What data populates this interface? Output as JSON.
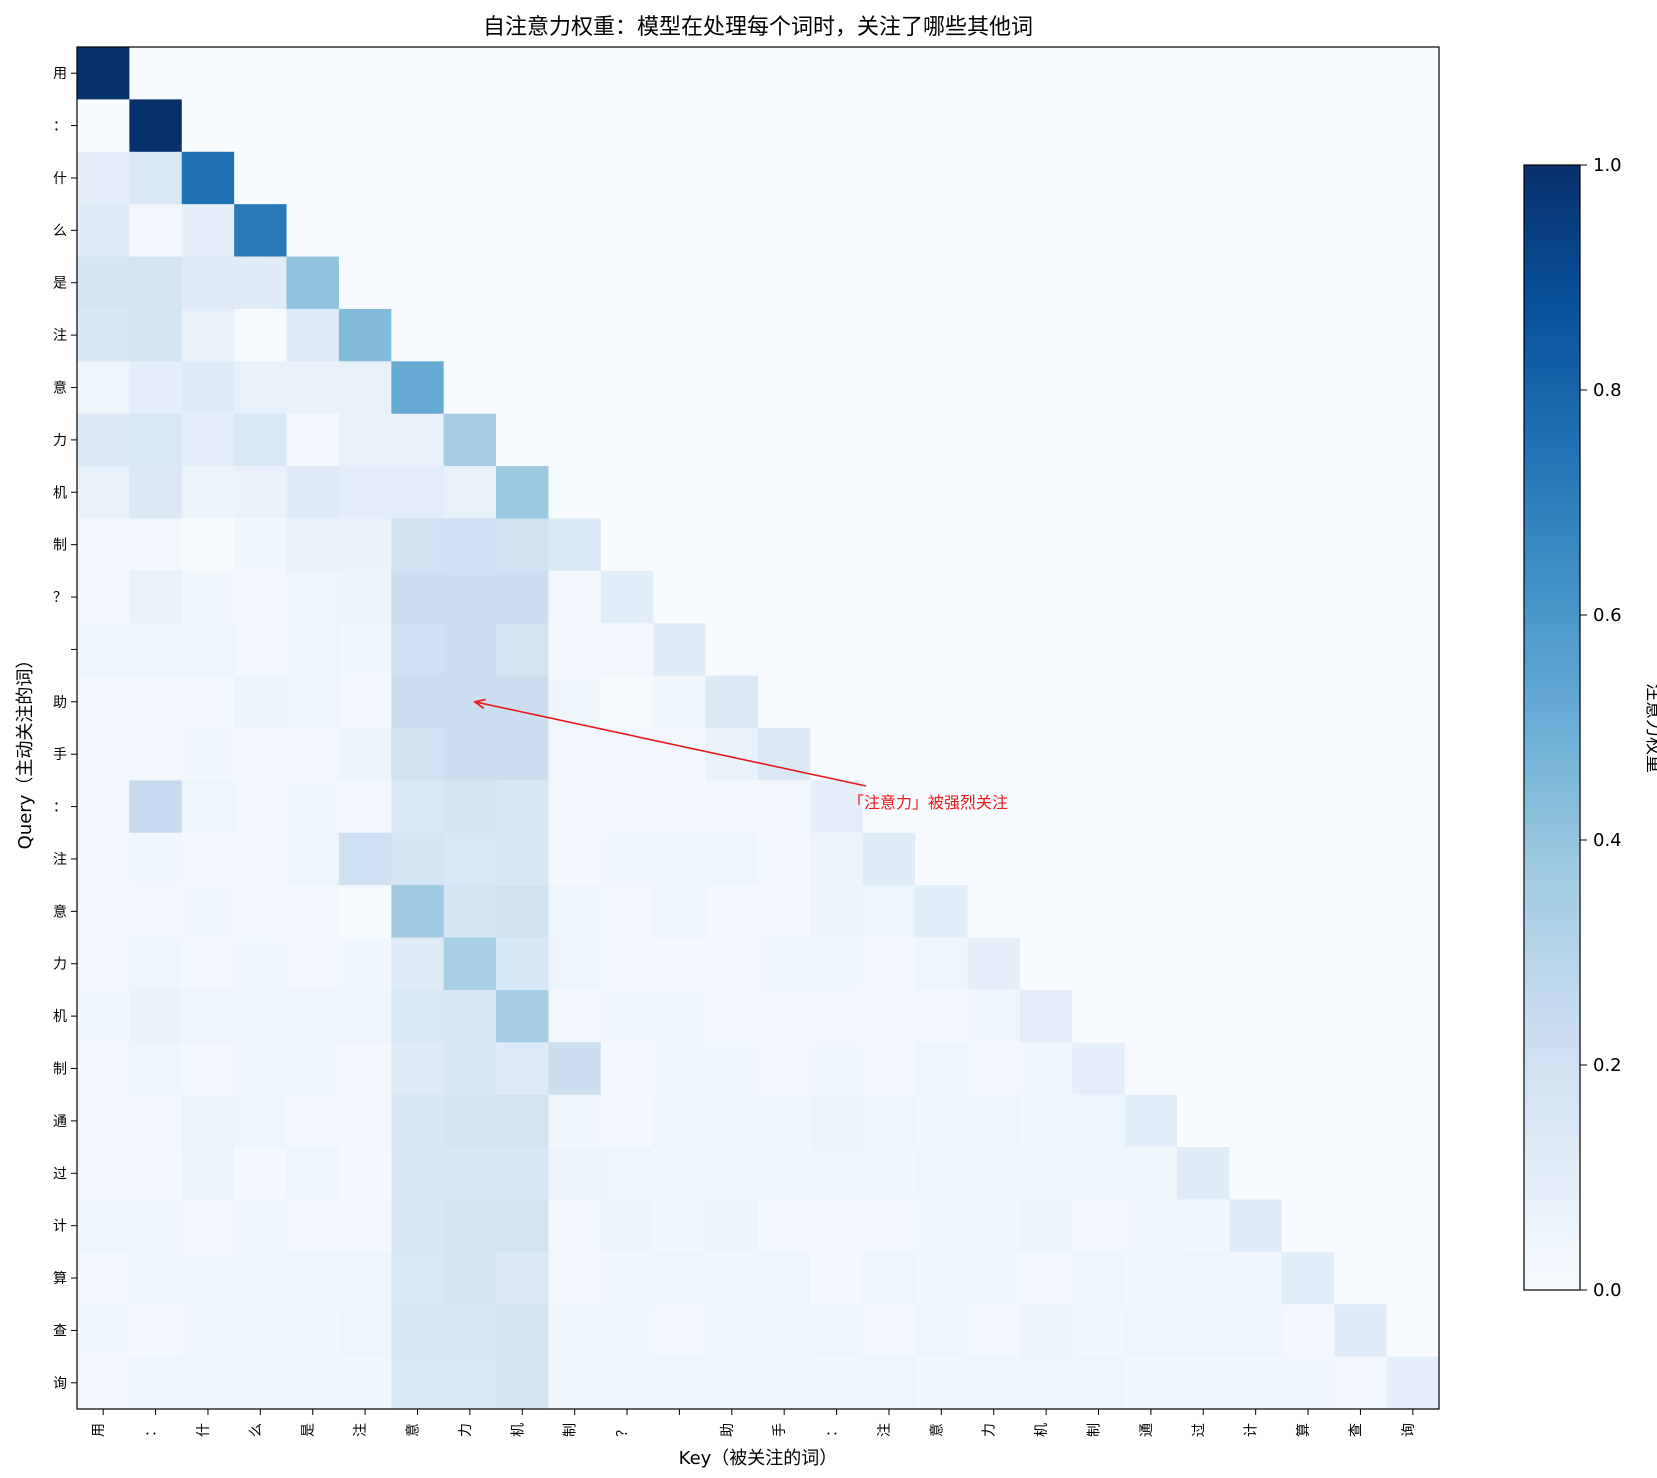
{
  "chart_data": {
    "type": "heatmap",
    "title": "自注意力权重：模型在处理每个词时，关注了哪些其他词",
    "xlabel": "Key（被关注的词）",
    "ylabel": "Query（主动关注的词）",
    "tokens": [
      "用",
      "：",
      "什",
      "么",
      "是",
      "注",
      "意",
      "力",
      "机",
      "制",
      "？",
      " ",
      "助",
      "手",
      "：",
      "注",
      "意",
      "力",
      "机",
      "制",
      "通",
      "过",
      "计",
      "算",
      "查",
      "询"
    ],
    "color_scale": {
      "min": 0.0,
      "max": 1.0,
      "ticks": [
        "0.0",
        "0.2",
        "0.4",
        "0.6",
        "0.8",
        "1.0"
      ],
      "label": "注意力权重",
      "colormap": "Blues"
    },
    "masked": "upper-triangle",
    "annotation": {
      "text": "「注意力」被强烈关注",
      "target_row": 12,
      "target_col": 7,
      "color": "#e8191a"
    },
    "values": [
      [
        1.0
      ],
      [
        0.0,
        1.0
      ],
      [
        0.1,
        0.15,
        0.75
      ],
      [
        0.12,
        0.03,
        0.1,
        0.72
      ],
      [
        0.17,
        0.18,
        0.12,
        0.12,
        0.41
      ],
      [
        0.16,
        0.18,
        0.08,
        0.01,
        0.13,
        0.44
      ],
      [
        0.05,
        0.09,
        0.12,
        0.08,
        0.07,
        0.08,
        0.52
      ],
      [
        0.14,
        0.15,
        0.1,
        0.15,
        0.02,
        0.08,
        0.07,
        0.35
      ],
      [
        0.08,
        0.14,
        0.06,
        0.07,
        0.12,
        0.1,
        0.1,
        0.08,
        0.38
      ],
      [
        0.03,
        0.03,
        0.01,
        0.04,
        0.08,
        0.07,
        0.2,
        0.21,
        0.2,
        0.15
      ],
      [
        0.03,
        0.08,
        0.04,
        0.03,
        0.05,
        0.06,
        0.23,
        0.22,
        0.23,
        0.02,
        0.11
      ],
      [
        0.05,
        0.05,
        0.05,
        0.03,
        0.05,
        0.04,
        0.21,
        0.22,
        0.18,
        0.03,
        0.03,
        0.12
      ],
      [
        0.03,
        0.03,
        0.03,
        0.06,
        0.05,
        0.03,
        0.23,
        0.23,
        0.23,
        0.04,
        0.01,
        0.04,
        0.14
      ],
      [
        0.03,
        0.03,
        0.04,
        0.03,
        0.03,
        0.06,
        0.2,
        0.23,
        0.23,
        0.03,
        0.03,
        0.02,
        0.07,
        0.14
      ],
      [
        0.03,
        0.25,
        0.05,
        0.03,
        0.04,
        0.03,
        0.15,
        0.18,
        0.16,
        0.03,
        0.03,
        0.03,
        0.03,
        0.03,
        0.1
      ],
      [
        0.03,
        0.04,
        0.03,
        0.03,
        0.05,
        0.21,
        0.17,
        0.15,
        0.16,
        0.02,
        0.04,
        0.04,
        0.05,
        0.03,
        0.06,
        0.12
      ],
      [
        0.03,
        0.03,
        0.04,
        0.02,
        0.03,
        0.01,
        0.37,
        0.17,
        0.2,
        0.05,
        0.03,
        0.05,
        0.03,
        0.03,
        0.06,
        0.05,
        0.11
      ],
      [
        0.03,
        0.05,
        0.03,
        0.04,
        0.03,
        0.04,
        0.13,
        0.34,
        0.16,
        0.05,
        0.02,
        0.02,
        0.03,
        0.04,
        0.04,
        0.03,
        0.05,
        0.09
      ],
      [
        0.04,
        0.07,
        0.05,
        0.04,
        0.05,
        0.05,
        0.15,
        0.16,
        0.35,
        0.03,
        0.04,
        0.04,
        0.02,
        0.03,
        0.03,
        0.03,
        0.03,
        0.04,
        0.1
      ],
      [
        0.03,
        0.05,
        0.03,
        0.04,
        0.04,
        0.03,
        0.12,
        0.16,
        0.13,
        0.22,
        0.03,
        0.04,
        0.04,
        0.03,
        0.04,
        0.03,
        0.05,
        0.03,
        0.04,
        0.09
      ],
      [
        0.03,
        0.03,
        0.06,
        0.05,
        0.03,
        0.03,
        0.16,
        0.17,
        0.19,
        0.04,
        0.02,
        0.05,
        0.04,
        0.04,
        0.06,
        0.05,
        0.04,
        0.05,
        0.04,
        0.05,
        0.11
      ],
      [
        0.03,
        0.02,
        0.06,
        0.02,
        0.05,
        0.02,
        0.16,
        0.16,
        0.16,
        0.06,
        0.05,
        0.04,
        0.04,
        0.04,
        0.05,
        0.04,
        0.05,
        0.04,
        0.04,
        0.04,
        0.04,
        0.12
      ],
      [
        0.05,
        0.04,
        0.03,
        0.04,
        0.03,
        0.03,
        0.16,
        0.18,
        0.19,
        0.03,
        0.06,
        0.04,
        0.06,
        0.03,
        0.03,
        0.03,
        0.04,
        0.04,
        0.06,
        0.03,
        0.04,
        0.04,
        0.13
      ],
      [
        0.03,
        0.04,
        0.04,
        0.04,
        0.05,
        0.05,
        0.15,
        0.17,
        0.14,
        0.02,
        0.04,
        0.05,
        0.04,
        0.05,
        0.02,
        0.05,
        0.04,
        0.04,
        0.03,
        0.05,
        0.04,
        0.05,
        0.04,
        0.11
      ],
      [
        0.04,
        0.02,
        0.04,
        0.04,
        0.04,
        0.05,
        0.16,
        0.16,
        0.18,
        0.04,
        0.04,
        0.03,
        0.04,
        0.05,
        0.05,
        0.03,
        0.05,
        0.03,
        0.06,
        0.04,
        0.05,
        0.05,
        0.05,
        0.03,
        0.12
      ],
      [
        0.03,
        0.05,
        0.04,
        0.04,
        0.04,
        0.04,
        0.15,
        0.15,
        0.17,
        0.04,
        0.04,
        0.05,
        0.04,
        0.05,
        0.04,
        0.05,
        0.04,
        0.05,
        0.05,
        0.05,
        0.04,
        0.04,
        0.04,
        0.04,
        0.03,
        0.1
      ]
    ]
  }
}
